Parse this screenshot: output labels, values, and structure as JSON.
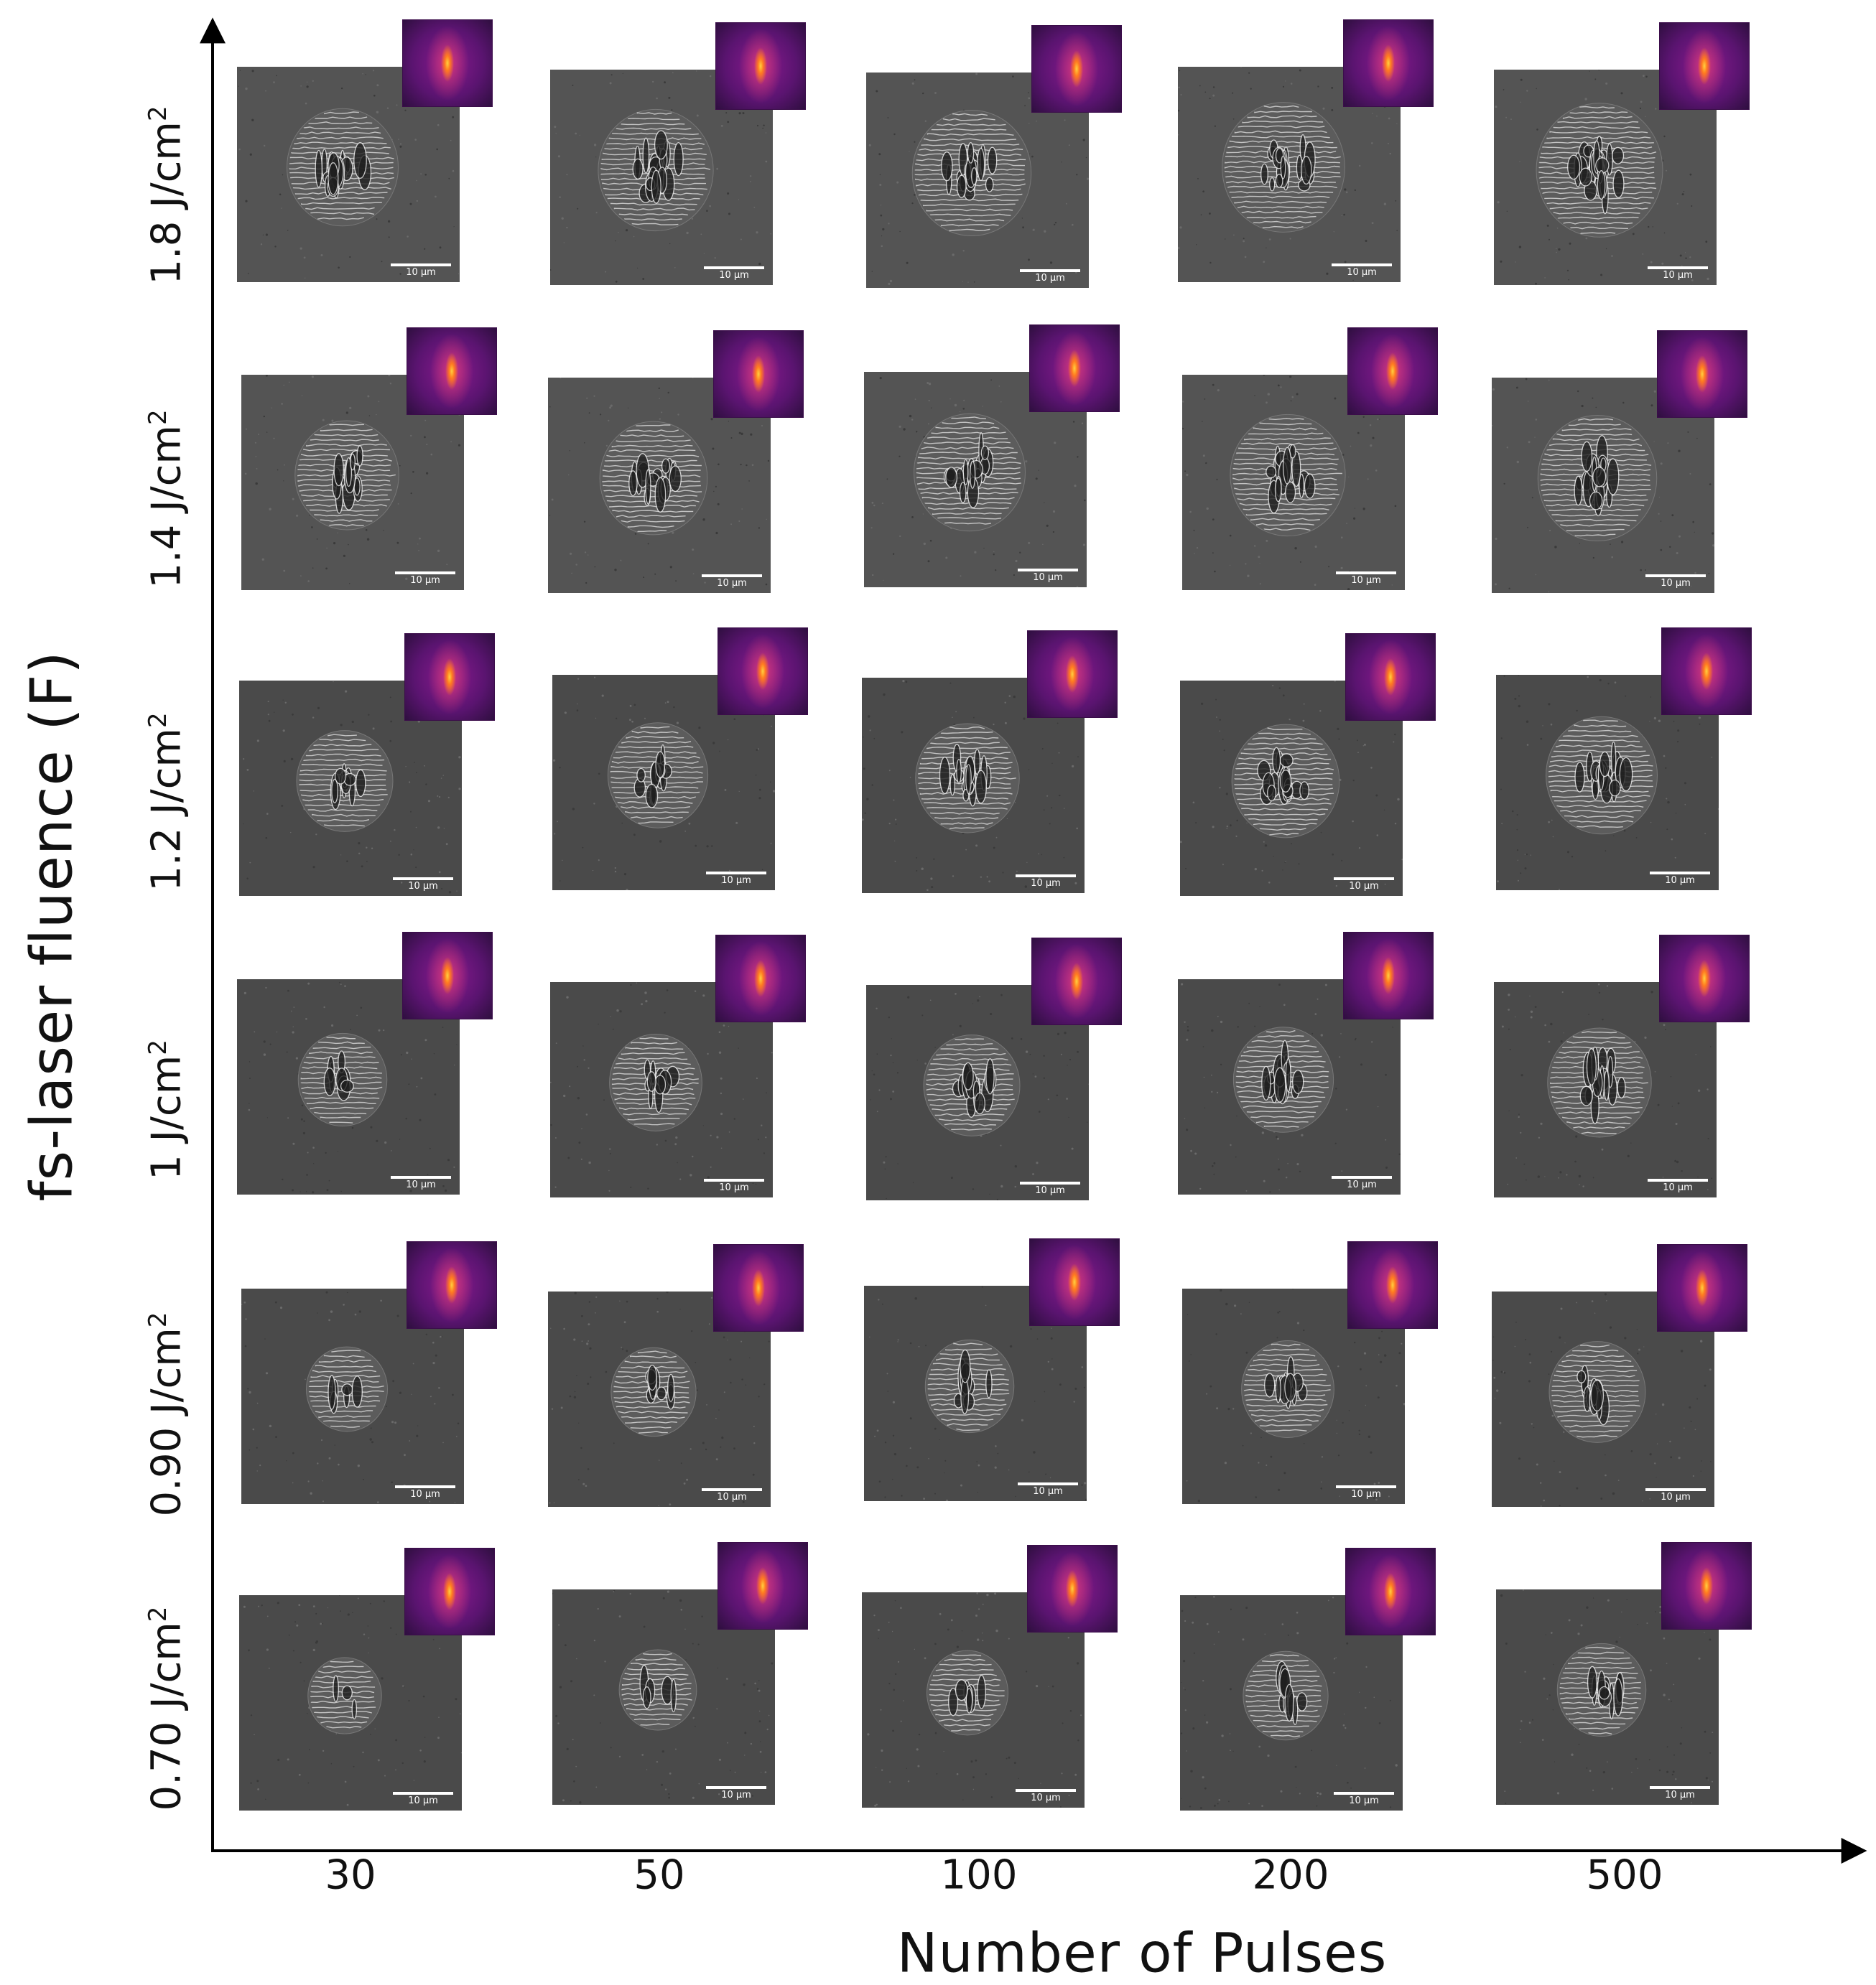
{
  "figure": {
    "y_axis_title": "fs-laser fluence (F)",
    "x_axis_title": "Number of Pulses",
    "fluence_unit": "J/cm",
    "fluence_exponent": "2",
    "rows": [
      "1.8",
      "1.4",
      "1.2",
      "1",
      "0.90",
      "0.70"
    ],
    "columns": [
      "30",
      "50",
      "100",
      "200",
      "500"
    ],
    "scale_bar_label": "10 µm",
    "colors": {
      "sem_background": "#4a4a4a",
      "fft_background": "#7a1a88",
      "fft_peak": "#ff9a30",
      "axis": "#000000"
    }
  }
}
